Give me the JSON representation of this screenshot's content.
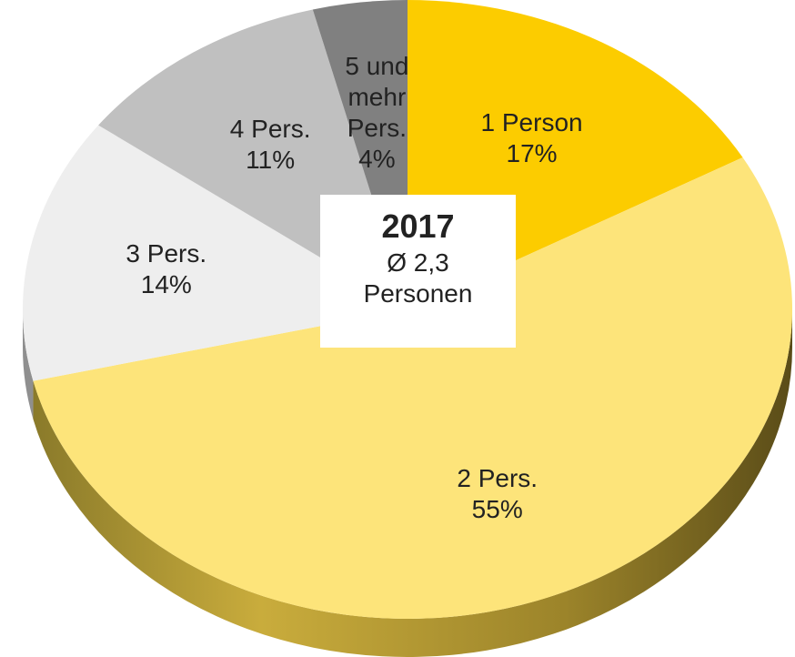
{
  "chart_data": {
    "type": "pie",
    "title": "2017",
    "subtitle": "Ø 2,3 Personen",
    "categories": [
      "1 Person",
      "2 Pers.",
      "3 Pers.",
      "4 Pers.",
      "5 und mehr Pers."
    ],
    "values": [
      17,
      55,
      14,
      11,
      4
    ],
    "value_labels": [
      "17%",
      "55%",
      "14%",
      "11%",
      "4%"
    ],
    "colors": [
      "#fccc00",
      "#fde47a",
      "#eeeeee",
      "#c0c0c0",
      "#808080"
    ]
  }
}
